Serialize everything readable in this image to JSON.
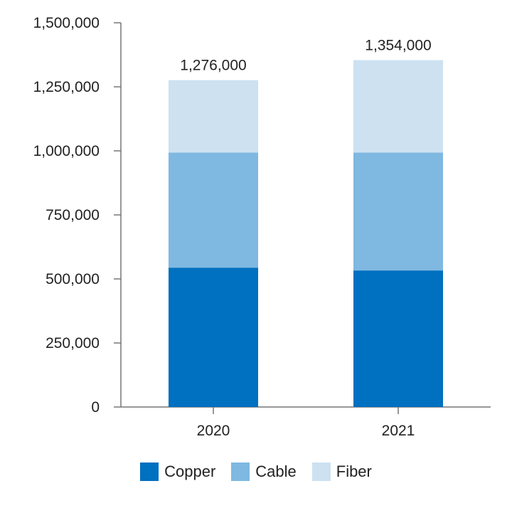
{
  "chart_data": {
    "type": "bar",
    "stacked": true,
    "categories": [
      "2020",
      "2021"
    ],
    "series": [
      {
        "name": "Copper",
        "color": "#0070c0",
        "values": [
          544000,
          533000
        ]
      },
      {
        "name": "Cable",
        "color": "#7fb8e1",
        "values": [
          449000,
          460000
        ]
      },
      {
        "name": "Fiber",
        "color": "#cde1f1",
        "values": [
          283000,
          361000
        ]
      }
    ],
    "totals": [
      "1,276,000",
      "1,354,000"
    ],
    "ylim": [
      0,
      1500000
    ],
    "yticks": [
      0,
      250000,
      500000,
      750000,
      1000000,
      1250000,
      1500000
    ],
    "ytick_labels": [
      "0",
      "250,000",
      "500,000",
      "750,000",
      "1,000,000",
      "1,250,000",
      "1,500,000"
    ],
    "grid": false,
    "legend_position": "bottom"
  }
}
